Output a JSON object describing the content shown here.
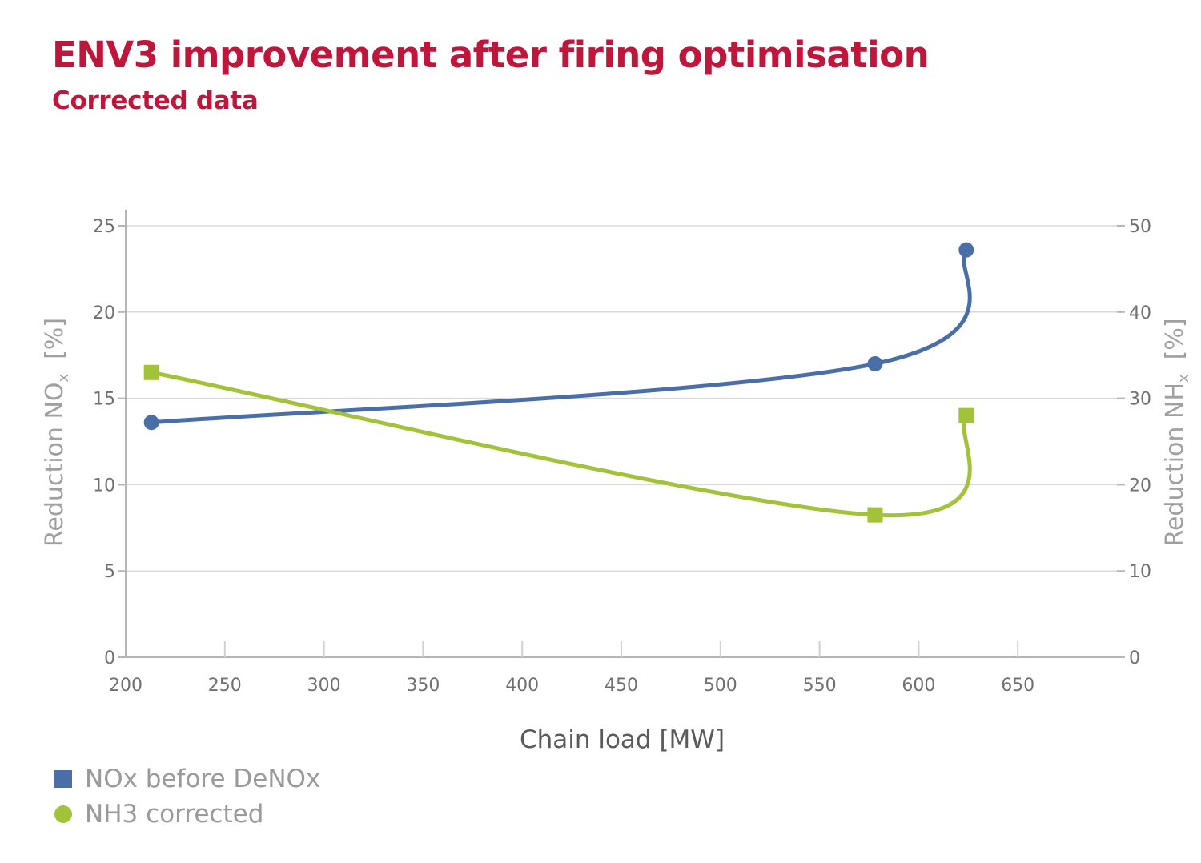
{
  "title": "ENV3 improvement after firing optimisation",
  "subtitle": "Corrected data",
  "colors": {
    "title": "#c0163c",
    "blue": "#4a6fa8",
    "green": "#a2c23a"
  },
  "legend": [
    {
      "label": "NOx before DeNOx",
      "color": "#4a6fa8",
      "shape": "square"
    },
    {
      "label": "NH3 corrected",
      "color": "#a2c23a",
      "shape": "circle"
    }
  ],
  "chart_data": {
    "type": "line",
    "title": "ENV3 improvement after firing optimisation",
    "subtitle": "Corrected data",
    "xlabel": "Chain load [MW]",
    "ylabel_left": {
      "main": "Reduction NO",
      "sub": "x",
      "unit": "[%]"
    },
    "ylabel_right": {
      "main": "Reduction NH",
      "sub": "x",
      "unit": "[%]"
    },
    "xlim": [
      200,
      700
    ],
    "ylim_left": [
      0,
      25
    ],
    "ylim_right": [
      0,
      50
    ],
    "x_ticks": [
      200,
      250,
      300,
      350,
      400,
      450,
      500,
      550,
      600,
      650
    ],
    "y_ticks_left": [
      0,
      5,
      10,
      15,
      20,
      25
    ],
    "y_ticks_right": [
      0,
      10,
      20,
      30,
      40,
      50
    ],
    "grid": "horizontal",
    "legend_position": "bottom-left",
    "series": [
      {
        "name": "NOx before DeNOx",
        "axis": "left",
        "color": "#4a6fa8",
        "marker": "circle",
        "x": [
          213,
          578,
          624
        ],
        "y": [
          13.6,
          17.0,
          23.6
        ]
      },
      {
        "name": "NH3 corrected",
        "axis": "right",
        "color": "#a2c23a",
        "marker": "square",
        "x": [
          213,
          578,
          624
        ],
        "y": [
          33.0,
          16.5,
          28.0
        ]
      }
    ]
  }
}
